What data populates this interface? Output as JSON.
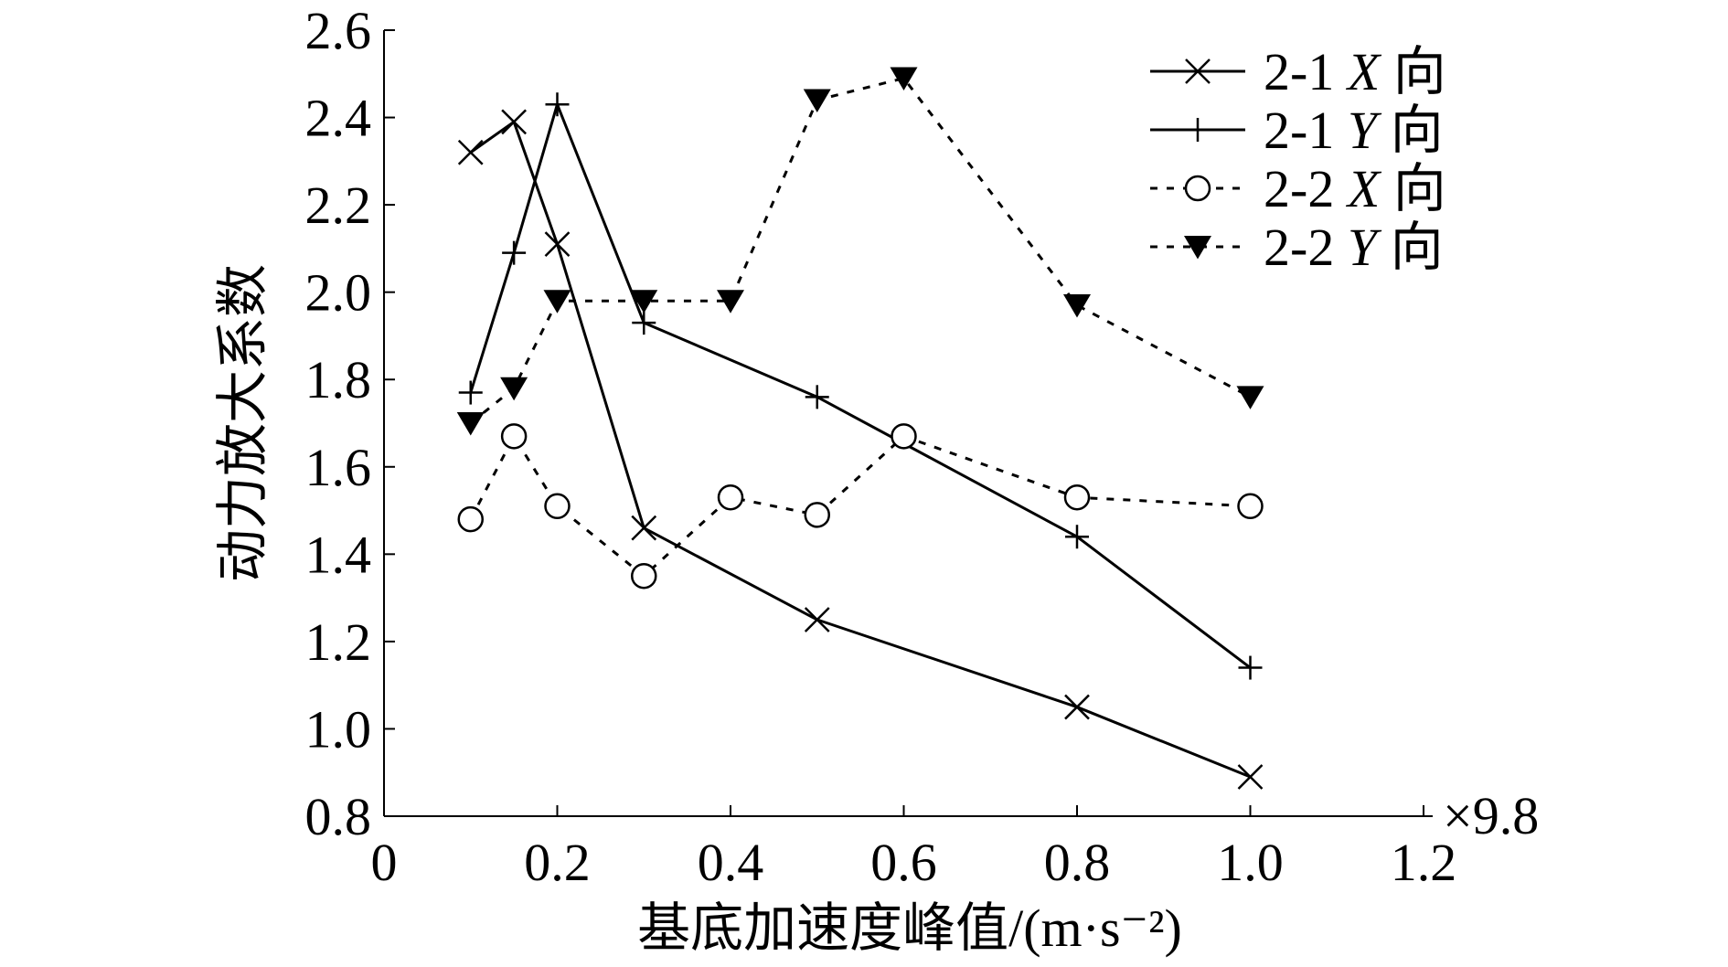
{
  "chart_data": {
    "type": "line",
    "xlabel": "基底加速度峰值/(m·s⁻²)",
    "ylabel": "动力放大系数",
    "x_multiplier_label": "×9.8",
    "xlim": [
      0,
      1.2
    ],
    "ylim": [
      0.8,
      2.6
    ],
    "x_ticks": [
      "0",
      "0.2",
      "0.4",
      "0.6",
      "0.8",
      "1.0",
      "1.2"
    ],
    "y_ticks": [
      "0.8",
      "1.0",
      "1.2",
      "1.4",
      "1.6",
      "1.8",
      "2.0",
      "2.2",
      "2.4",
      "2.6"
    ],
    "grid": false,
    "legend_position": "top-right",
    "series": [
      {
        "name": "2-1 X 向",
        "name_prefix": "2-1 ",
        "name_axis": "X",
        "name_suffix": " 向",
        "marker": "x",
        "line_style": "solid",
        "color": "#000000",
        "x": [
          0.1,
          0.15,
          0.2,
          0.3,
          0.5,
          0.8,
          1.0
        ],
        "y": [
          2.32,
          2.39,
          2.11,
          1.46,
          1.25,
          1.05,
          0.89
        ]
      },
      {
        "name": "2-1 Y 向",
        "name_prefix": "2-1 ",
        "name_axis": "Y",
        "name_suffix": " 向",
        "marker": "plus",
        "line_style": "solid",
        "color": "#000000",
        "x": [
          0.1,
          0.15,
          0.2,
          0.3,
          0.5,
          0.8,
          1.0
        ],
        "y": [
          1.77,
          2.09,
          2.43,
          1.93,
          1.76,
          1.44,
          1.14
        ]
      },
      {
        "name": "2-2 X 向",
        "name_prefix": "2-2 ",
        "name_axis": "X",
        "name_suffix": " 向",
        "marker": "circle",
        "line_style": "dashed",
        "color": "#000000",
        "x": [
          0.1,
          0.15,
          0.2,
          0.3,
          0.4,
          0.5,
          0.6,
          0.8,
          1.0
        ],
        "y": [
          1.48,
          1.67,
          1.51,
          1.35,
          1.53,
          1.49,
          1.67,
          1.53,
          1.51
        ]
      },
      {
        "name": "2-2 Y 向",
        "name_prefix": "2-2 ",
        "name_axis": "Y",
        "name_suffix": " 向",
        "marker": "triangle-down",
        "line_style": "dashed",
        "color": "#000000",
        "x": [
          0.1,
          0.15,
          0.2,
          0.3,
          0.4,
          0.5,
          0.6,
          0.8,
          1.0
        ],
        "y": [
          1.7,
          1.78,
          1.98,
          1.98,
          1.98,
          2.44,
          2.49,
          1.97,
          1.76
        ]
      }
    ]
  }
}
